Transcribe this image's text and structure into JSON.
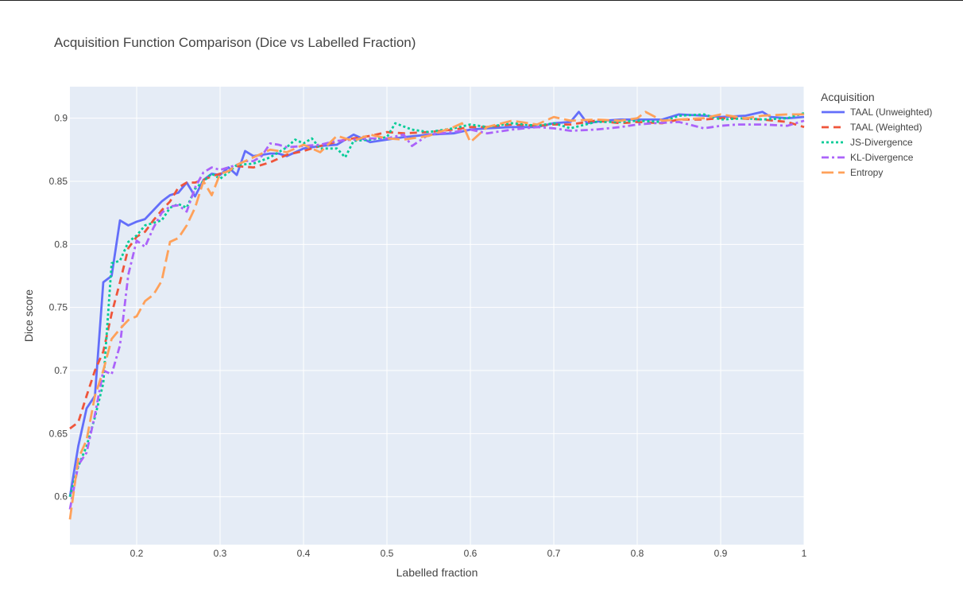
{
  "chart_data": {
    "type": "line",
    "title": "Acquisition Function Comparison (Dice vs Labelled Fraction)",
    "xlabel": "Labelled fraction",
    "ylabel": "Dice score",
    "xlim": [
      0.12,
      1.0
    ],
    "ylim": [
      0.562,
      0.925
    ],
    "x_ticks": [
      0.2,
      0.3,
      0.4,
      0.5,
      0.6,
      0.7,
      0.8,
      0.9,
      1
    ],
    "x_tick_labels": [
      "0.2",
      "0.3",
      "0.4",
      "0.5",
      "0.6",
      "0.7",
      "0.8",
      "0.9",
      "1"
    ],
    "y_ticks": [
      0.6,
      0.65,
      0.7,
      0.75,
      0.8,
      0.85,
      0.9
    ],
    "y_tick_labels": [
      "0.6",
      "0.65",
      "0.7",
      "0.75",
      "0.8",
      "0.85",
      "0.9"
    ],
    "grid": true,
    "legend_title": "Acquisition",
    "legend_position": "right",
    "plot_bgcolor": "#e5ecf6",
    "series": [
      {
        "name": "TAAL (Unweighted)",
        "color": "#636efa",
        "dash": "solid",
        "x": [
          0.12,
          0.13,
          0.14,
          0.15,
          0.16,
          0.17,
          0.18,
          0.19,
          0.2,
          0.21,
          0.22,
          0.23,
          0.24,
          0.25,
          0.26,
          0.27,
          0.28,
          0.29,
          0.3,
          0.31,
          0.32,
          0.33,
          0.34,
          0.35,
          0.36,
          0.37,
          0.38,
          0.4,
          0.42,
          0.44,
          0.46,
          0.48,
          0.5,
          0.52,
          0.55,
          0.58,
          0.6,
          0.62,
          0.65,
          0.68,
          0.7,
          0.72,
          0.73,
          0.74,
          0.76,
          0.78,
          0.8,
          0.83,
          0.85,
          0.88,
          0.9,
          0.93,
          0.95,
          0.96,
          0.98,
          1.0
        ],
        "values": [
          0.6,
          0.64,
          0.67,
          0.68,
          0.77,
          0.775,
          0.819,
          0.815,
          0.818,
          0.82,
          0.827,
          0.834,
          0.839,
          0.841,
          0.849,
          0.838,
          0.851,
          0.856,
          0.855,
          0.861,
          0.855,
          0.874,
          0.87,
          0.871,
          0.872,
          0.872,
          0.87,
          0.876,
          0.878,
          0.879,
          0.887,
          0.881,
          0.883,
          0.885,
          0.887,
          0.888,
          0.891,
          0.892,
          0.893,
          0.893,
          0.896,
          0.897,
          0.905,
          0.896,
          0.898,
          0.899,
          0.899,
          0.899,
          0.903,
          0.902,
          0.901,
          0.902,
          0.905,
          0.901,
          0.9,
          0.901
        ]
      },
      {
        "name": "TAAL (Weighted)",
        "color": "#ef553b",
        "dash": "dash",
        "x": [
          0.12,
          0.13,
          0.14,
          0.15,
          0.16,
          0.17,
          0.18,
          0.19,
          0.2,
          0.21,
          0.22,
          0.23,
          0.24,
          0.25,
          0.26,
          0.27,
          0.28,
          0.29,
          0.3,
          0.31,
          0.32,
          0.34,
          0.36,
          0.38,
          0.4,
          0.42,
          0.45,
          0.48,
          0.5,
          0.52,
          0.55,
          0.58,
          0.6,
          0.62,
          0.65,
          0.68,
          0.7,
          0.72,
          0.75,
          0.78,
          0.8,
          0.83,
          0.85,
          0.88,
          0.9,
          0.92,
          0.95,
          0.98,
          1.0
        ],
        "values": [
          0.654,
          0.659,
          0.68,
          0.7,
          0.715,
          0.745,
          0.77,
          0.797,
          0.806,
          0.81,
          0.819,
          0.827,
          0.834,
          0.845,
          0.849,
          0.849,
          0.851,
          0.854,
          0.856,
          0.858,
          0.862,
          0.861,
          0.865,
          0.871,
          0.874,
          0.878,
          0.883,
          0.886,
          0.889,
          0.888,
          0.889,
          0.891,
          0.893,
          0.893,
          0.895,
          0.894,
          0.895,
          0.895,
          0.898,
          0.896,
          0.897,
          0.896,
          0.899,
          0.899,
          0.9,
          0.9,
          0.899,
          0.897,
          0.893
        ]
      },
      {
        "name": "JS-Divergence",
        "color": "#00cc96",
        "dash": "dot",
        "x": [
          0.12,
          0.13,
          0.14,
          0.15,
          0.16,
          0.17,
          0.18,
          0.19,
          0.2,
          0.21,
          0.22,
          0.23,
          0.24,
          0.25,
          0.26,
          0.27,
          0.28,
          0.29,
          0.3,
          0.31,
          0.32,
          0.34,
          0.36,
          0.38,
          0.39,
          0.4,
          0.41,
          0.42,
          0.44,
          0.45,
          0.46,
          0.48,
          0.5,
          0.51,
          0.53,
          0.55,
          0.58,
          0.6,
          0.62,
          0.65,
          0.68,
          0.7,
          0.72,
          0.75,
          0.78,
          0.8,
          0.83,
          0.85,
          0.88,
          0.9,
          0.93,
          0.95,
          0.98,
          1.0
        ],
        "values": [
          0.6,
          0.624,
          0.64,
          0.663,
          0.69,
          0.785,
          0.787,
          0.802,
          0.807,
          0.815,
          0.817,
          0.819,
          0.829,
          0.832,
          0.829,
          0.844,
          0.85,
          0.856,
          0.852,
          0.857,
          0.863,
          0.864,
          0.869,
          0.877,
          0.883,
          0.88,
          0.884,
          0.876,
          0.876,
          0.869,
          0.882,
          0.883,
          0.885,
          0.896,
          0.891,
          0.889,
          0.892,
          0.895,
          0.893,
          0.896,
          0.894,
          0.896,
          0.892,
          0.897,
          0.897,
          0.898,
          0.897,
          0.902,
          0.903,
          0.899,
          0.9,
          0.899,
          0.9,
          0.904
        ]
      },
      {
        "name": "KL-Divergence",
        "color": "#ab63fa",
        "dash": "dashdot",
        "x": [
          0.12,
          0.13,
          0.14,
          0.15,
          0.16,
          0.17,
          0.18,
          0.19,
          0.2,
          0.21,
          0.22,
          0.23,
          0.24,
          0.25,
          0.26,
          0.27,
          0.28,
          0.29,
          0.3,
          0.31,
          0.32,
          0.33,
          0.34,
          0.35,
          0.36,
          0.37,
          0.38,
          0.4,
          0.42,
          0.44,
          0.46,
          0.48,
          0.5,
          0.52,
          0.53,
          0.55,
          0.58,
          0.6,
          0.62,
          0.65,
          0.68,
          0.7,
          0.72,
          0.75,
          0.78,
          0.8,
          0.82,
          0.85,
          0.88,
          0.9,
          0.92,
          0.95,
          0.98,
          1.0
        ],
        "values": [
          0.59,
          0.625,
          0.635,
          0.665,
          0.7,
          0.697,
          0.72,
          0.776,
          0.803,
          0.798,
          0.813,
          0.825,
          0.83,
          0.831,
          0.826,
          0.845,
          0.857,
          0.861,
          0.859,
          0.861,
          0.863,
          0.866,
          0.866,
          0.87,
          0.88,
          0.879,
          0.877,
          0.878,
          0.879,
          0.882,
          0.883,
          0.884,
          0.884,
          0.887,
          0.878,
          0.887,
          0.889,
          0.891,
          0.888,
          0.891,
          0.893,
          0.892,
          0.89,
          0.891,
          0.893,
          0.895,
          0.896,
          0.897,
          0.892,
          0.894,
          0.895,
          0.895,
          0.894,
          0.898
        ]
      },
      {
        "name": "Entropy",
        "color": "#ffa15a",
        "dash": "longdash",
        "x": [
          0.12,
          0.13,
          0.14,
          0.15,
          0.16,
          0.17,
          0.18,
          0.19,
          0.2,
          0.21,
          0.22,
          0.23,
          0.24,
          0.25,
          0.26,
          0.27,
          0.28,
          0.29,
          0.3,
          0.31,
          0.32,
          0.34,
          0.36,
          0.38,
          0.4,
          0.42,
          0.44,
          0.46,
          0.48,
          0.5,
          0.52,
          0.55,
          0.58,
          0.59,
          0.6,
          0.62,
          0.65,
          0.68,
          0.7,
          0.72,
          0.75,
          0.78,
          0.8,
          0.81,
          0.83,
          0.85,
          0.88,
          0.9,
          0.93,
          0.95,
          0.98,
          1.0
        ],
        "values": [
          0.582,
          0.63,
          0.645,
          0.68,
          0.7,
          0.725,
          0.733,
          0.74,
          0.743,
          0.755,
          0.76,
          0.771,
          0.802,
          0.805,
          0.815,
          0.829,
          0.85,
          0.839,
          0.856,
          0.858,
          0.863,
          0.869,
          0.875,
          0.873,
          0.879,
          0.873,
          0.886,
          0.882,
          0.887,
          0.884,
          0.883,
          0.886,
          0.893,
          0.896,
          0.881,
          0.893,
          0.898,
          0.895,
          0.901,
          0.898,
          0.899,
          0.898,
          0.9,
          0.905,
          0.898,
          0.899,
          0.9,
          0.903,
          0.9,
          0.902,
          0.903,
          0.903
        ]
      }
    ]
  }
}
